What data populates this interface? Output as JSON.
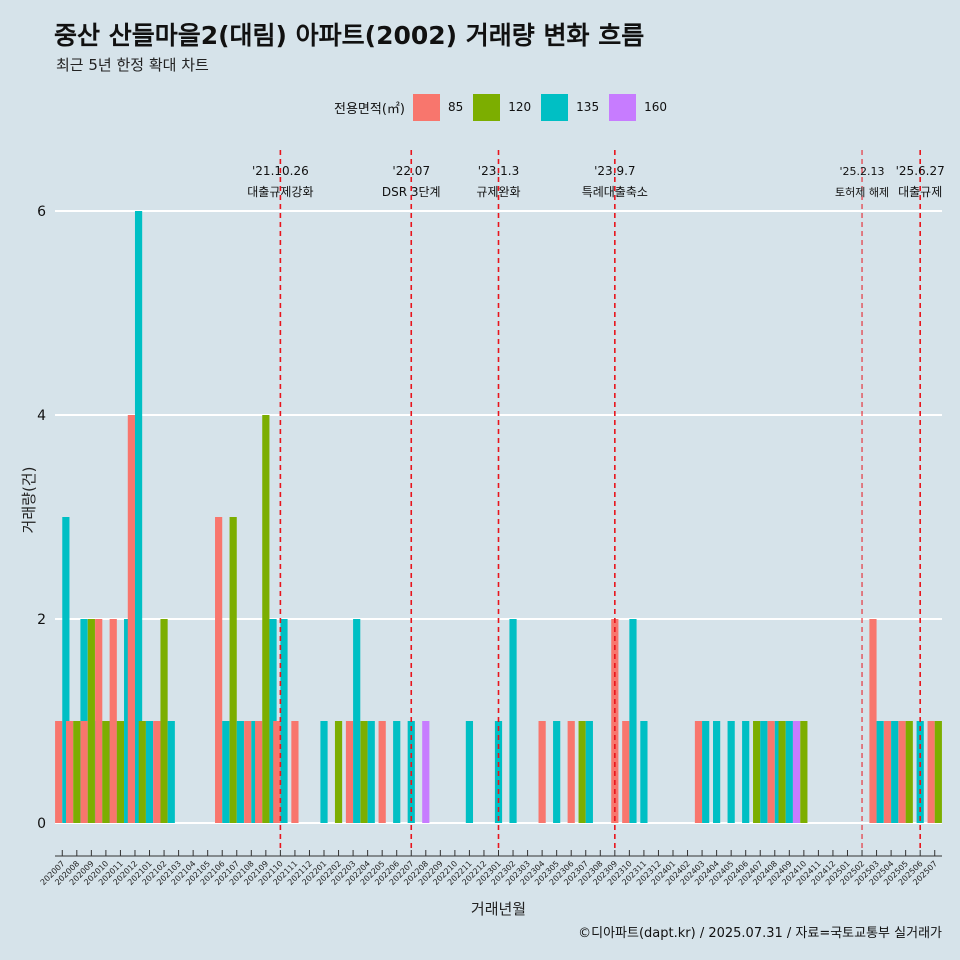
{
  "title": "중산 산들마을2(대림) 아파트(2002) 거래량 변화 흐름",
  "subtitle": "최근 5년 한정 확대 차트",
  "footer": "©디아파트(dapt.kr) / 2025.07.31 / 자료=국토교통부 실거래가",
  "legend": {
    "title": "전용면적(㎡)",
    "items": [
      {
        "label": "85",
        "color": "#f8766d"
      },
      {
        "label": "120",
        "color": "#7cae00"
      },
      {
        "label": "135",
        "color": "#00bfc4"
      },
      {
        "label": "160",
        "color": "#c77cff"
      }
    ]
  },
  "chart_data": {
    "type": "bar",
    "xlabel": "거래년월",
    "ylabel": "거래량(건)",
    "ylim": [
      0,
      6
    ],
    "yticks": [
      0,
      2,
      4,
      6
    ],
    "categories": [
      "202007",
      "202008",
      "202009",
      "202010",
      "202011",
      "202012",
      "202101",
      "202102",
      "202103",
      "202104",
      "202105",
      "202106",
      "202107",
      "202108",
      "202109",
      "202110",
      "202111",
      "202112",
      "202201",
      "202202",
      "202203",
      "202204",
      "202205",
      "202206",
      "202207",
      "202208",
      "202209",
      "202210",
      "202211",
      "202212",
      "202301",
      "202302",
      "202303",
      "202304",
      "202305",
      "202306",
      "202307",
      "202308",
      "202309",
      "202310",
      "202311",
      "202312",
      "202401",
      "202402",
      "202403",
      "202404",
      "202405",
      "202406",
      "202407",
      "202408",
      "202409",
      "202410",
      "202411",
      "202412",
      "202501",
      "202502",
      "202503",
      "202504",
      "202505",
      "202506",
      "202507"
    ],
    "series": [
      {
        "name": "85",
        "values": [
          1,
          1,
          1,
          2,
          2,
          4,
          0,
          1,
          0,
          0,
          0,
          3,
          0,
          1,
          1,
          1,
          1,
          0,
          0,
          0,
          1,
          0,
          1,
          0,
          0,
          0,
          0,
          0,
          0,
          0,
          0,
          0,
          0,
          1,
          0,
          1,
          0,
          0,
          2,
          1,
          0,
          0,
          0,
          0,
          1,
          0,
          0,
          0,
          0,
          1,
          0,
          0,
          0,
          0,
          0,
          0,
          2,
          1,
          1,
          0,
          1
        ]
      },
      {
        "name": "120",
        "values": [
          0,
          1,
          2,
          1,
          1,
          0,
          1,
          2,
          0,
          0,
          0,
          0,
          3,
          0,
          4,
          0,
          0,
          0,
          0,
          1,
          0,
          1,
          0,
          0,
          0,
          0,
          0,
          0,
          0,
          0,
          0,
          0,
          0,
          0,
          0,
          0,
          1,
          0,
          0,
          0,
          0,
          0,
          0,
          0,
          0,
          0,
          0,
          0,
          1,
          0,
          1,
          1,
          0,
          0,
          0,
          0,
          0,
          0,
          1,
          0,
          1
        ]
      },
      {
        "name": "135",
        "values": [
          3,
          2,
          1,
          1,
          2,
          6,
          1,
          1,
          0,
          0,
          0,
          1,
          1,
          1,
          2,
          2,
          0,
          0,
          1,
          0,
          2,
          1,
          0,
          1,
          1,
          0,
          0,
          0,
          1,
          0,
          1,
          2,
          0,
          0,
          1,
          0,
          1,
          0,
          0,
          2,
          1,
          0,
          0,
          0,
          1,
          1,
          1,
          1,
          1,
          1,
          1,
          0,
          0,
          0,
          0,
          0,
          1,
          1,
          0,
          1,
          0
        ]
      },
      {
        "name": "160",
        "values": [
          0,
          0,
          0,
          0,
          0,
          0,
          1,
          0,
          0,
          0,
          0,
          0,
          0,
          0,
          0,
          0,
          0,
          0,
          0,
          0,
          0,
          0,
          0,
          0,
          0,
          1,
          0,
          0,
          0,
          0,
          0,
          0,
          0,
          0,
          0,
          0,
          0,
          0,
          0,
          0,
          0,
          0,
          0,
          0,
          0,
          0,
          0,
          0,
          0,
          0,
          1,
          0,
          0,
          0,
          0,
          0,
          0,
          0,
          0,
          0,
          0
        ]
      }
    ],
    "events": [
      {
        "date": "'21.10.26",
        "label": "대출규제강화",
        "at": "202110"
      },
      {
        "date": "'22.07",
        "label": "DSR 3단계",
        "at": "202207"
      },
      {
        "date": "'23.1.3",
        "label": "규제완화",
        "at": "202301"
      },
      {
        "date": "'23.9.7",
        "label": "특례대출축소",
        "at": "202309"
      },
      {
        "date": "'25.2.13",
        "label": "토허제 해제",
        "at": "202502",
        "small": true
      },
      {
        "date": "'25.6.27",
        "label": "대출규제",
        "at": "202506"
      }
    ]
  }
}
